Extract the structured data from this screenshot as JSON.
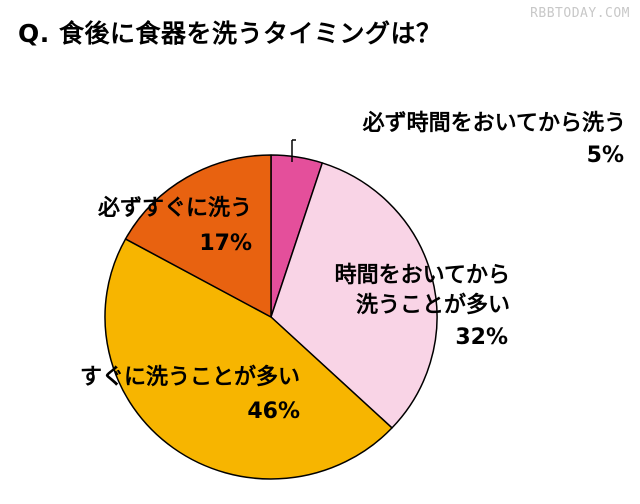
{
  "title": "Q. 食後に食器を洗うタイミングは？",
  "watermark": "RBBTODAY.COM",
  "chart_data": {
    "type": "pie",
    "title": "Q. 食後に食器を洗うタイミングは？",
    "slices": [
      {
        "label": "必ず時間をおいてから洗う",
        "value": 5,
        "value_label": "5%",
        "color": "#e44f9b"
      },
      {
        "label": "時間をおいてから洗うことが多い",
        "value": 32,
        "value_label": "32%",
        "color": "#f9d4e6"
      },
      {
        "label": "すぐに洗うことが多い",
        "value": 46,
        "value_label": "46%",
        "color": "#f7b500"
      },
      {
        "label": "必ずすぐに洗う",
        "value": 17,
        "value_label": "17%",
        "color": "#e86210"
      }
    ],
    "label_lines": {
      "slice_0": [
        "必ず時間をおいてから洗う",
        "5%"
      ],
      "slice_1": [
        "時間をおいてから",
        "洗うことが多い",
        "32%"
      ],
      "slice_2": [
        "すぐに洗うことが多い",
        "46%"
      ],
      "slice_3": [
        "必ずすぐに洗う",
        "17%"
      ]
    }
  }
}
